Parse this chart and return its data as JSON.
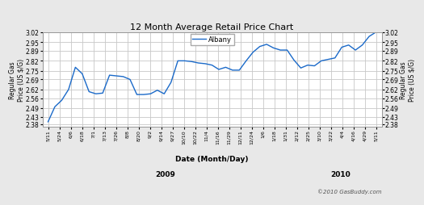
{
  "title": "12 Month Average Retail Price Chart",
  "ylabel_left": "Regular Gas\nPrice (US $/G)",
  "ylabel_right": "Regular Gas\nPrice (US $/G)",
  "xlabel": "Date (Month/Day)",
  "legend_label": "Albany",
  "copyright": "©2010 GasBuddy.com",
  "ylim": [
    2.36,
    3.02
  ],
  "yticks": [
    2.38,
    2.43,
    2.49,
    2.56,
    2.62,
    2.69,
    2.75,
    2.82,
    2.89,
    2.95,
    3.02
  ],
  "line_color": "#1b6ac9",
  "bg_color": "#e8e8e8",
  "plot_bg": "#ffffff",
  "grid_color": "#c8c8c8",
  "x_labels": [
    "5/11",
    "5/24",
    "6/6",
    "6/18",
    "7/1",
    "7/13",
    "7/26",
    "8/8",
    "8/20",
    "9/2",
    "9/14",
    "9/27",
    "10/10",
    "10/22",
    "11/4",
    "11/16",
    "11/29",
    "12/11",
    "12/24",
    "1/6",
    "1/18",
    "1/31",
    "2/12",
    "2/25",
    "3/10",
    "3/22",
    "4/4",
    "4/16",
    "4/29",
    "5/11"
  ],
  "year_2009_idx": 10,
  "year_2010_idx": 25,
  "y_values": [
    2.395,
    2.5,
    2.545,
    2.62,
    2.775,
    2.73,
    2.605,
    2.59,
    2.595,
    2.72,
    2.715,
    2.71,
    2.69,
    2.585,
    2.585,
    2.59,
    2.615,
    2.59,
    2.67,
    2.82,
    2.82,
    2.815,
    2.805,
    2.8,
    2.79,
    2.76,
    2.775,
    2.755,
    2.755,
    2.82,
    2.88,
    2.92,
    2.935,
    2.91,
    2.895,
    2.895,
    2.825,
    2.77,
    2.79,
    2.785,
    2.82,
    2.83,
    2.84,
    2.915,
    2.93,
    2.895,
    2.93,
    2.99,
    3.02
  ]
}
